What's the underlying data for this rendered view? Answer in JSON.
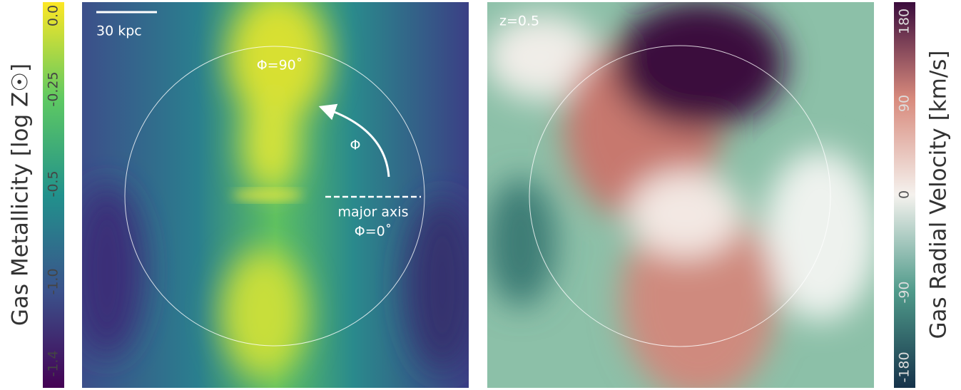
{
  "left_panel": {
    "colorbar": {
      "label": "Gas Metallicity [log Z☉]",
      "ticks": [
        "-1.4",
        "-1.0",
        "-0.5",
        "-0.25",
        "0.0"
      ]
    },
    "scale_bar": "30 kpc",
    "phi_top": "Φ=90˚",
    "phi_symbol": "Φ",
    "axis_label": "major axis",
    "phi_axis": "Φ=0˚"
  },
  "right_panel": {
    "redshift": "z=0.5",
    "colorbar": {
      "label": "Gas Radial Velocity [km/s]",
      "ticks": [
        "-180",
        "-90",
        "0",
        "90",
        "180"
      ]
    }
  }
}
